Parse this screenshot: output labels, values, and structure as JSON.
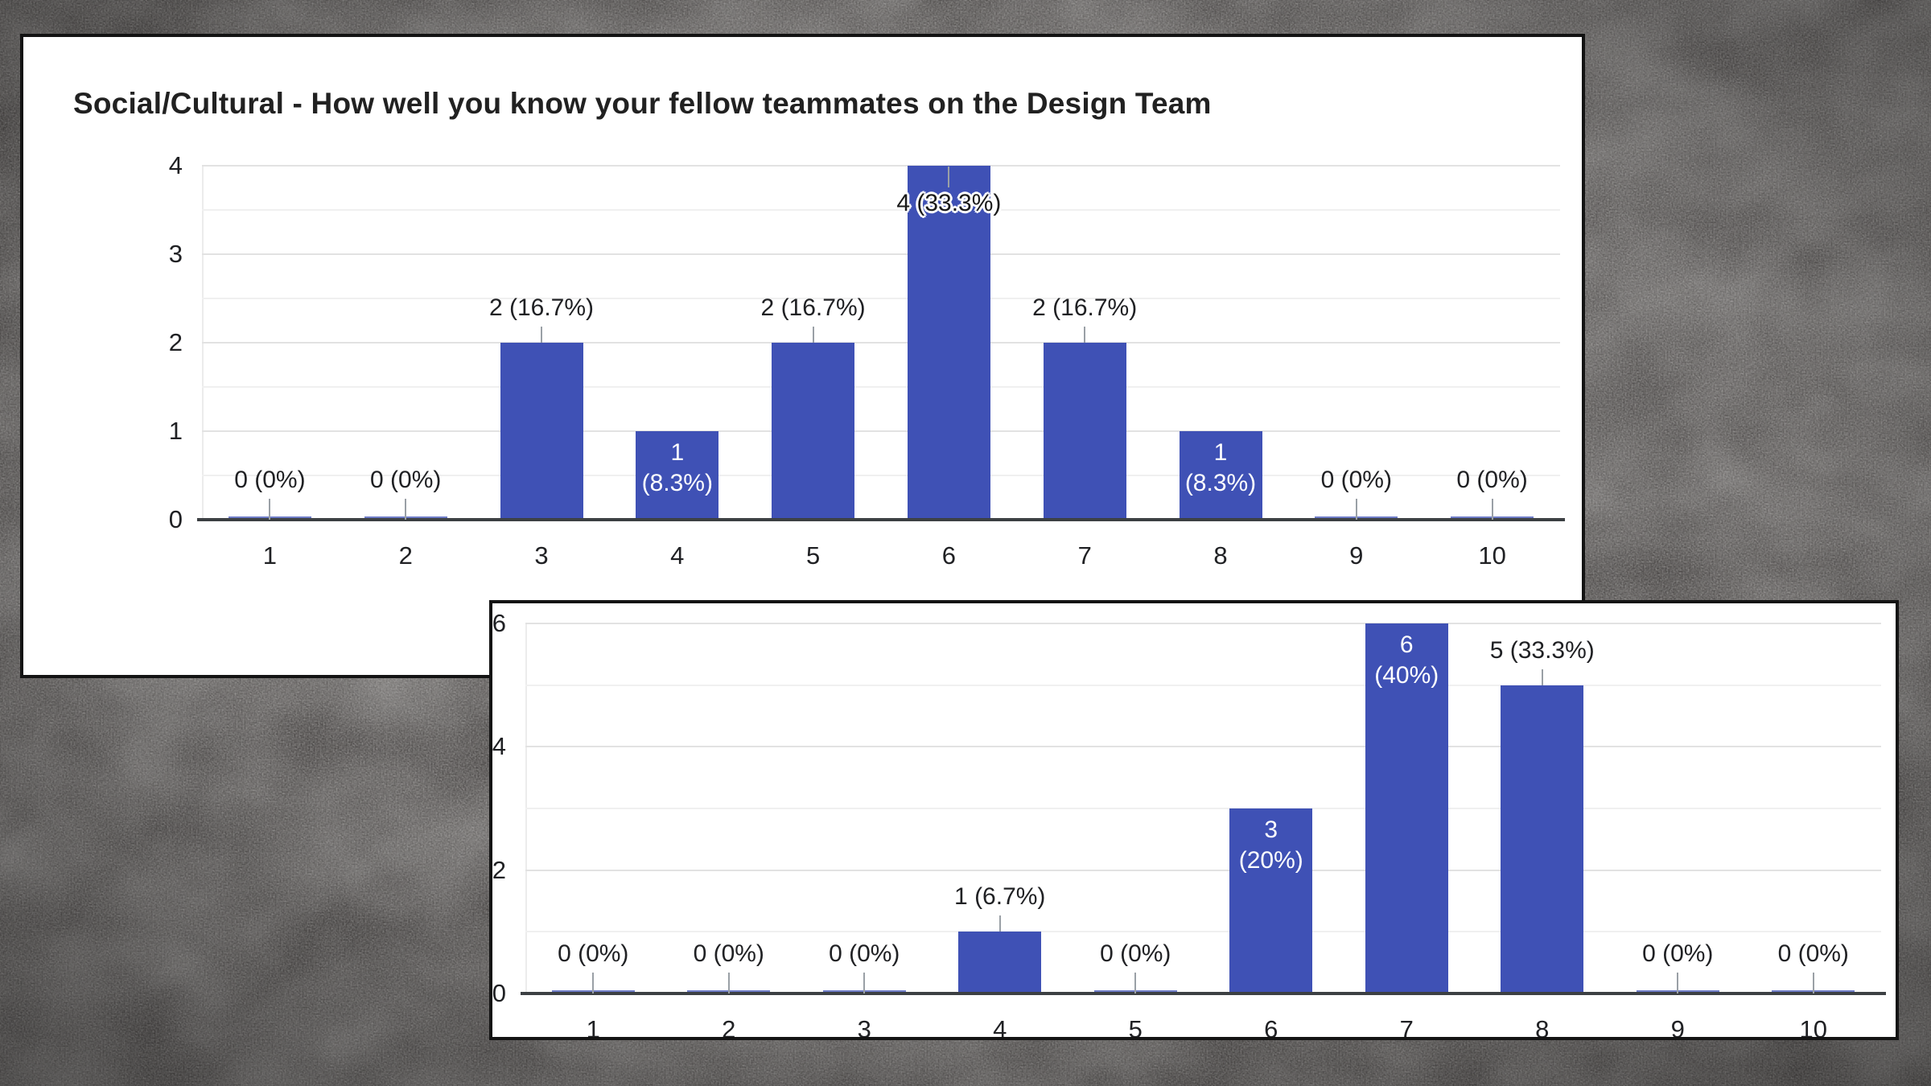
{
  "colors": {
    "bar": "#3f51b5",
    "card_background": "#ffffff",
    "card_border": "#131313",
    "desktop_background": "#474443",
    "gridline_major": "#e2e2e2",
    "gridline_minor": "#f0f0f0",
    "axis_line": "#3c4043",
    "label_text": "#202124",
    "label_text_inverse": "#ffffff",
    "leader_line": "#9aa0a6"
  },
  "cards": [
    {
      "title": "Social/Cultural - How well you know your fellow teammates on the Design Team"
    },
    {
      "title": ""
    }
  ],
  "chart_data": [
    {
      "type": "bar",
      "title": "Social/Cultural - How well you know your fellow teammates on the Design Team",
      "categories": [
        "1",
        "2",
        "3",
        "4",
        "5",
        "6",
        "7",
        "8",
        "9",
        "10"
      ],
      "values": [
        0,
        0,
        2,
        1,
        2,
        4,
        2,
        1,
        0,
        0
      ],
      "bar_labels": [
        "0 (0%)",
        "0 (0%)",
        "2 (16.7%)",
        "1 (8.3%)",
        "2 (16.7%)",
        "4 (33.3%)",
        "2 (16.7%)",
        "1 (8.3%)",
        "0 (0%)",
        "0 (0%)"
      ],
      "label_lines": [
        [
          "0 (0%)"
        ],
        [
          "0 (0%)"
        ],
        [
          "2 (16.7%)"
        ],
        [
          "1",
          "(8.3%)"
        ],
        [
          "2 (16.7%)"
        ],
        [
          "4 (33.3%)"
        ],
        [
          "2 (16.7%)"
        ],
        [
          "1",
          "(8.3%)"
        ],
        [
          "0 (0%)"
        ],
        [
          "0 (0%)"
        ]
      ],
      "label_placement": [
        "above",
        "above",
        "above",
        "inside",
        "above",
        "halo",
        "above",
        "inside",
        "above",
        "above"
      ],
      "xlabel": "",
      "ylabel": "",
      "ylim": [
        0,
        4
      ],
      "yticks": [
        0,
        1,
        2,
        3,
        4
      ],
      "y_minor_step": 0.5,
      "grid": true,
      "legend": "none",
      "bar_color": "#3f51b5"
    },
    {
      "type": "bar",
      "title": "",
      "categories": [
        "1",
        "2",
        "3",
        "4",
        "5",
        "6",
        "7",
        "8",
        "9",
        "10"
      ],
      "values": [
        0,
        0,
        0,
        1,
        0,
        3,
        6,
        5,
        0,
        0
      ],
      "bar_labels": [
        "0 (0%)",
        "0 (0%)",
        "0 (0%)",
        "1 (6.7%)",
        "0 (0%)",
        "3 (20%)",
        "6 (40%)",
        "5 (33.3%)",
        "0 (0%)",
        "0 (0%)"
      ],
      "label_lines": [
        [
          "0 (0%)"
        ],
        [
          "0 (0%)"
        ],
        [
          "0 (0%)"
        ],
        [
          "1 (6.7%)"
        ],
        [
          "0 (0%)"
        ],
        [
          "3",
          "(20%)"
        ],
        [
          "6",
          "(40%)"
        ],
        [
          "5 (33.3%)"
        ],
        [
          "0 (0%)"
        ],
        [
          "0 (0%)"
        ]
      ],
      "label_placement": [
        "above",
        "above",
        "above",
        "above",
        "above",
        "inside",
        "inside",
        "above",
        "above",
        "above"
      ],
      "xlabel": "",
      "ylabel": "",
      "ylim": [
        0,
        6
      ],
      "yticks": [
        0,
        2,
        4,
        6
      ],
      "y_minor_step": 1,
      "grid": true,
      "legend": "none",
      "bar_color": "#3f51b5"
    }
  ]
}
